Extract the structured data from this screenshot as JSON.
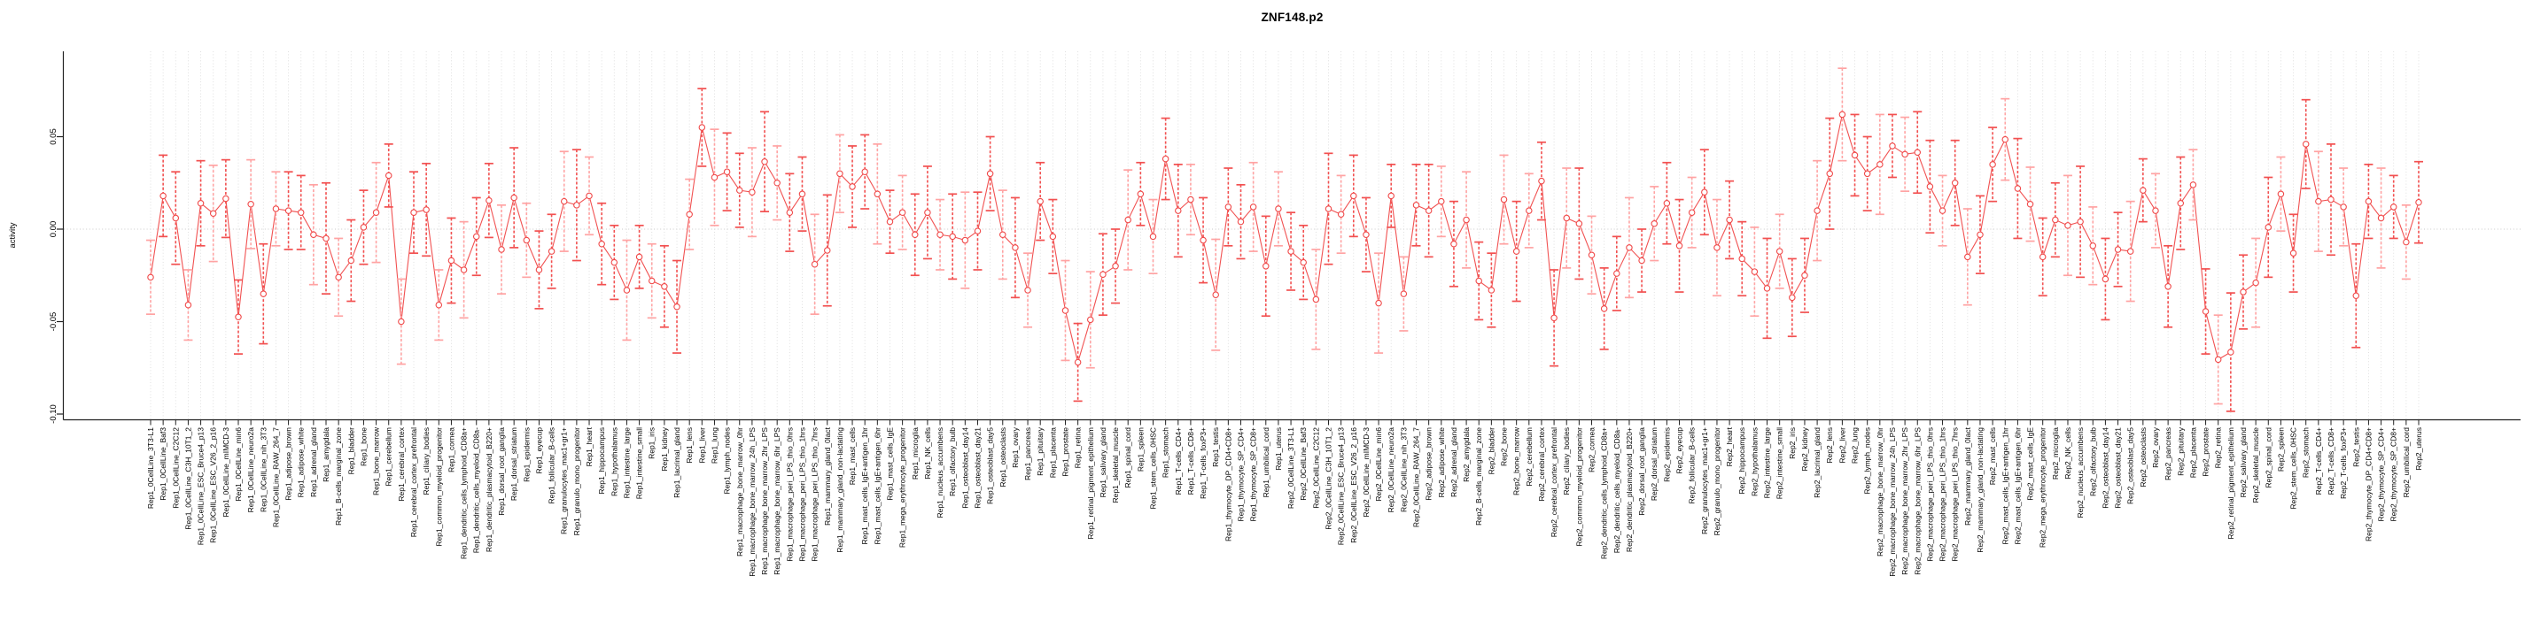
{
  "title": "ZNF148.p2",
  "chart_data": {
    "type": "line",
    "subtype": "errorbar-points",
    "title": "ZNF148.p2",
    "xlabel": "",
    "ylabel": "activity",
    "ylim": [
      -0.103,
      0.096
    ],
    "yticks": [
      0.05,
      0.0,
      -0.05,
      -0.1
    ],
    "ytick_labels": [
      "0.05",
      "0.00",
      "-0.05",
      "-0.10"
    ],
    "grid": "vertical-dotted, zero-line-dotted",
    "legend": "none",
    "colors": {
      "point_stroke": "#f04949",
      "point_fill": "#ffffff",
      "connector": "#f15252",
      "whisker_bright": "#f25050",
      "whisker_pale": "#ffa3a3",
      "gridline": "#dcdcdc",
      "zero_line": "#c9c9c9",
      "axis": "#222222",
      "text": "#000000"
    },
    "categories": [
      "Rep1_0CellLine_3T3-L1",
      "Rep1_0CellLine_Baf3",
      "Rep1_0CellLine_C2C12",
      "Rep1_0CellLine_C3H_10T1_2",
      "Rep1_0CellLine_ESC_Bruce4_p13",
      "Rep1_0CellLine_ESC_V26_2_p16",
      "Rep1_0CellLine_mIMCD-3",
      "Rep1_0CellLine_min6",
      "Rep1_0CellLine_neuro2a",
      "Rep1_0CellLine_nih_3T3",
      "Rep1_0CellLine_RAW_264_7",
      "Rep1_adipose_brown",
      "Rep1_adipose_white",
      "Rep1_adrenal_gland",
      "Rep1_amygdala",
      "Rep1_B-cells_marginal_zone",
      "Rep1_bladder",
      "Rep1_bone",
      "Rep1_bone_marrow",
      "Rep1_cerebellum",
      "Rep1_cerebral_cortex",
      "Rep1_cerebral_cortex_prefrontal",
      "Rep1_ciliary_bodies",
      "Rep1_common_myeloid_progenitor",
      "Rep1_cornea",
      "Rep1_dendritic_cells_lymphoid_CD8a+",
      "Rep1_dendritic_cells_myeloid_CD8a-",
      "Rep1_dendritic_plasmacytoid_B220+",
      "Rep1_dorsal_root_ganglia",
      "Rep1_dorsal_striatum",
      "Rep1_epidermis",
      "Rep1_eyecup",
      "Rep1_follicular_B-cells",
      "Rep1_granulocytes_mac1+gr1+",
      "Rep1_granulo_mono_progenitor",
      "Rep1_heart",
      "Rep1_hippocampus",
      "Rep1_hypothalamus",
      "Rep1_intestine_large",
      "Rep1_intestine_small",
      "Rep1_iris",
      "Rep1_kidney",
      "Rep1_lacrimal_gland",
      "Rep1_lens",
      "Rep1_liver",
      "Rep1_lung",
      "Rep1_lymph_nodes",
      "Rep1_macrophage_bone_marrow_0hr",
      "Rep1_macrophage_bone_marrow_24h_LPS",
      "Rep1_macrophage_bone_marrow_2hr_LPS",
      "Rep1_macrophage_bone_marrow_6hr_LPS",
      "Rep1_macrophage_peri_LPS_thio_0hrs",
      "Rep1_macrophage_peri_LPS_thio_1hrs",
      "Rep1_macrophage_peri_LPS_thio_7hrs",
      "Rep1_mammary_gland_0lact",
      "Rep1_mammary_gland_non-lactating",
      "Rep1_mast_cells",
      "Rep1_mast_cells_IgE+antigen_1hr",
      "Rep1_mast_cells_IgE+antigen_6hr",
      "Rep1_mast_cells_IgE",
      "Rep1_mega_erythrocyte_progenitor",
      "Rep1_microglia",
      "Rep1_NK_cells",
      "Rep1_nucleus_accumbens",
      "Rep1_olfactory_bulb",
      "Rep1_osteoblast_day14",
      "Rep1_osteoblast_day21",
      "Rep1_osteoblast_day5",
      "Rep1_osteoclasts",
      "Rep1_ovary",
      "Rep1_pancreas",
      "Rep1_pituitary",
      "Rep1_placenta",
      "Rep1_prostate",
      "Rep1_retina",
      "Rep1_retinal_pigment_epithelium",
      "Rep1_salivary_gland",
      "Rep1_skeletal_muscle",
      "Rep1_spinal_cord",
      "Rep1_spleen",
      "Rep1_stem_cells_0HSC",
      "Rep1_stomach",
      "Rep1_T-cells_CD4+",
      "Rep1_T-cells_CD8+",
      "Rep1_T-cells_foxP3+",
      "Rep1_testis",
      "Rep1_thymocyte_DP_CD4+CD8+",
      "Rep1_thymocyte_SP_CD4+",
      "Rep1_thymocyte_SP_CD8+",
      "Rep1_umbilical_cord",
      "Rep1_uterus",
      "Rep2_0CellLine_3T3-L1",
      "Rep2_0CellLine_Baf3",
      "Rep2_0CellLine_C2C12",
      "Rep2_0CellLine_C3H_10T1_2",
      "Rep2_0CellLine_ESC_Bruce4_p13",
      "Rep2_0CellLine_ESC_V26_2_p16",
      "Rep2_0CellLine_mIMCD-3",
      "Rep2_0CellLine_min6",
      "Rep2_0CellLine_neuro2a",
      "Rep2_0CellLine_nih_3T3",
      "Rep2_0CellLine_RAW_264_7",
      "Rep2_adipose_brown",
      "Rep2_adipose_white",
      "Rep2_adrenal_gland",
      "Rep2_amygdala",
      "Rep2_B-cells_marginal_zone",
      "Rep2_bladder",
      "Rep2_bone",
      "Rep2_bone_marrow",
      "Rep2_cerebellum",
      "Rep2_cerebral_cortex",
      "Rep2_cerebral_cortex_prefrontal",
      "Rep2_ciliary_bodies",
      "Rep2_common_myeloid_progenitor",
      "Rep2_cornea",
      "Rep2_dendritic_cells_lymphoid_CD8a+",
      "Rep2_dendritic_cells_myeloid_CD8a-",
      "Rep2_dendritic_plasmacytoid_B220+",
      "Rep2_dorsal_root_ganglia",
      "Rep2_dorsal_striatum",
      "Rep2_epidermis",
      "Rep2_eyecup",
      "Rep2_follicular_B-cells",
      "Rep2_granulocytes_mac1+gr1+",
      "Rep2_granulo_mono_progenitor",
      "Rep2_heart",
      "Rep2_hippocampus",
      "Rep2_hypothalamus",
      "Rep2_intestine_large",
      "Rep2_intestine_small",
      "Rep2_iris",
      "Rep2_kidney",
      "Rep2_lacrimal_gland",
      "Rep2_lens",
      "Rep2_liver",
      "Rep2_lung",
      "Rep2_lymph_nodes",
      "Rep2_macrophage_bone_marrow_0hr",
      "Rep2_macrophage_bone_marrow_24h_LPS",
      "Rep2_macrophage_bone_marrow_2hr_LPS",
      "Rep2_macrophage_bone_marrow_6hr_LPS",
      "Rep2_macrophage_peri_LPS_thio_0hrs",
      "Rep2_macrophage_peri_LPS_thio_1hrs",
      "Rep2_macrophage_peri_LPS_thio_7hrs",
      "Rep2_mammary_gland_0lact",
      "Rep2_mammary_gland_non-lactating",
      "Rep2_mast_cells",
      "Rep2_mast_cells_IgE+antigen_1hr",
      "Rep2_mast_cells_IgE+antigen_6hr",
      "Rep2_mast_cells_IgE",
      "Rep2_mega_erythrocyte_progenitor",
      "Rep2_microglia",
      "Rep2_NK_cells",
      "Rep2_nucleus_accumbens",
      "Rep2_olfactory_bulb",
      "Rep2_osteoblast_day14",
      "Rep2_osteoblast_day21",
      "Rep2_osteoblast_day5",
      "Rep2_osteoclasts",
      "Rep2_ovary",
      "Rep2_pancreas",
      "Rep2_pituitary",
      "Rep2_placenta",
      "Rep2_prostate",
      "Rep2_retina",
      "Rep2_retinal_pigment_epithelium",
      "Rep2_salivary_gland",
      "Rep2_skeletal_muscle",
      "Rep2_spinal_cord",
      "Rep2_spleen",
      "Rep2_stem_cells_0HSC",
      "Rep2_stomach",
      "Rep2_T-cells_CD4+",
      "Rep2_T-cells_CD8+",
      "Rep2_T-cells_foxP3+",
      "Rep2_testis",
      "Rep2_thymocyte_DP_CD4+CD8+",
      "Rep2_thymocyte_SP_CD4+",
      "Rep2_thymocyte_SP_CD8+",
      "Rep2_umbilical_cord",
      "Rep2_uterus"
    ],
    "series": [
      {
        "name": "activity",
        "values": [
          -0.026,
          0.018,
          0.006,
          -0.041,
          0.014,
          0.0085,
          0.0165,
          -0.0475,
          0.0135,
          -0.035,
          0.011,
          0.01,
          0.009,
          -0.003,
          -0.005,
          -0.026,
          -0.017,
          0.001,
          0.009,
          0.029,
          -0.05,
          0.009,
          0.0105,
          -0.041,
          -0.017,
          -0.022,
          -0.004,
          0.0155,
          -0.011,
          0.017,
          -0.006,
          -0.022,
          -0.012,
          0.015,
          0.013,
          0.018,
          -0.008,
          -0.018,
          -0.033,
          -0.015,
          -0.028,
          -0.031,
          -0.042,
          0.008,
          0.055,
          0.028,
          0.031,
          0.021,
          0.02,
          0.0365,
          0.025,
          0.009,
          0.019,
          -0.019,
          -0.0115,
          0.03,
          0.023,
          0.031,
          0.019,
          0.004,
          0.009,
          -0.003,
          0.009,
          -0.003,
          -0.004,
          -0.006,
          -0.001,
          0.03,
          -0.003,
          -0.01,
          -0.033,
          0.015,
          -0.004,
          -0.044,
          -0.072,
          -0.049,
          -0.0245,
          -0.02,
          0.005,
          0.019,
          -0.004,
          0.038,
          0.01,
          0.016,
          -0.006,
          -0.0355,
          0.012,
          0.004,
          0.012,
          -0.02,
          0.011,
          -0.012,
          -0.018,
          -0.038,
          0.011,
          0.008,
          0.018,
          -0.003,
          -0.04,
          0.018,
          -0.035,
          0.013,
          0.01,
          0.015,
          -0.008,
          0.005,
          -0.028,
          -0.033,
          0.016,
          -0.012,
          0.01,
          0.026,
          -0.048,
          0.006,
          0.003,
          -0.014,
          -0.043,
          -0.024,
          -0.01,
          -0.017,
          0.003,
          0.014,
          -0.009,
          0.009,
          0.02,
          -0.01,
          0.005,
          -0.016,
          -0.023,
          -0.032,
          -0.012,
          -0.037,
          -0.025,
          0.01,
          0.03,
          0.062,
          0.04,
          0.03,
          0.035,
          0.045,
          0.0405,
          0.0415,
          0.023,
          0.01,
          0.025,
          -0.015,
          -0.003,
          0.035,
          0.0485,
          0.022,
          0.0135,
          -0.015,
          0.005,
          0.002,
          0.004,
          -0.009,
          -0.027,
          -0.011,
          -0.012,
          0.021,
          0.01,
          -0.031,
          0.014,
          0.024,
          -0.0445,
          -0.0705,
          -0.0665,
          -0.034,
          -0.029,
          0.001,
          0.019,
          -0.013,
          0.046,
          0.015,
          0.016,
          0.012,
          -0.036,
          0.015,
          0.006,
          0.012,
          -0.007,
          0.0145
        ],
        "errors": [
          0.02,
          0.022,
          0.025,
          0.019,
          0.023,
          0.026,
          0.021,
          0.02,
          0.024,
          0.027,
          0.02,
          0.021,
          0.02,
          0.027,
          0.03,
          0.021,
          0.022,
          0.02,
          0.027,
          0.017,
          0.023,
          0.022,
          0.025,
          0.019,
          0.023,
          0.026,
          0.021,
          0.02,
          0.024,
          0.027,
          0.02,
          0.021,
          0.02,
          0.027,
          0.03,
          0.021,
          0.022,
          0.02,
          0.027,
          0.017,
          0.02,
          0.022,
          0.025,
          0.019,
          0.021,
          0.026,
          0.021,
          0.02,
          0.024,
          0.027,
          0.02,
          0.021,
          0.02,
          0.027,
          0.03,
          0.021,
          0.022,
          0.02,
          0.027,
          0.017,
          0.02,
          0.022,
          0.025,
          0.019,
          0.023,
          0.026,
          0.021,
          0.02,
          0.024,
          0.027,
          0.02,
          0.021,
          0.02,
          0.027,
          0.021,
          0.026,
          0.022,
          0.02,
          0.027,
          0.017,
          0.02,
          0.022,
          0.025,
          0.019,
          0.023,
          0.03,
          0.021,
          0.02,
          0.024,
          0.027,
          0.02,
          0.021,
          0.02,
          0.027,
          0.03,
          0.021,
          0.022,
          0.02,
          0.027,
          0.017,
          0.02,
          0.022,
          0.025,
          0.019,
          0.023,
          0.026,
          0.021,
          0.02,
          0.024,
          0.027,
          0.02,
          0.021,
          0.026,
          0.027,
          0.03,
          0.021,
          0.022,
          0.02,
          0.027,
          0.017,
          0.02,
          0.022,
          0.025,
          0.019,
          0.023,
          0.026,
          0.021,
          0.02,
          0.024,
          0.027,
          0.02,
          0.021,
          0.02,
          0.027,
          0.03,
          0.025,
          0.022,
          0.02,
          0.027,
          0.017,
          0.02,
          0.022,
          0.025,
          0.019,
          0.023,
          0.026,
          0.021,
          0.02,
          0.022,
          0.027,
          0.02,
          0.021,
          0.02,
          0.027,
          0.03,
          0.021,
          0.022,
          0.02,
          0.027,
          0.017,
          0.02,
          0.022,
          0.025,
          0.019,
          0.023,
          0.024,
          0.032,
          0.02,
          0.024,
          0.027,
          0.02,
          0.021,
          0.024,
          0.027,
          0.03,
          0.021,
          0.028,
          0.02,
          0.027,
          0.017,
          0.02,
          0.022
        ]
      }
    ]
  }
}
